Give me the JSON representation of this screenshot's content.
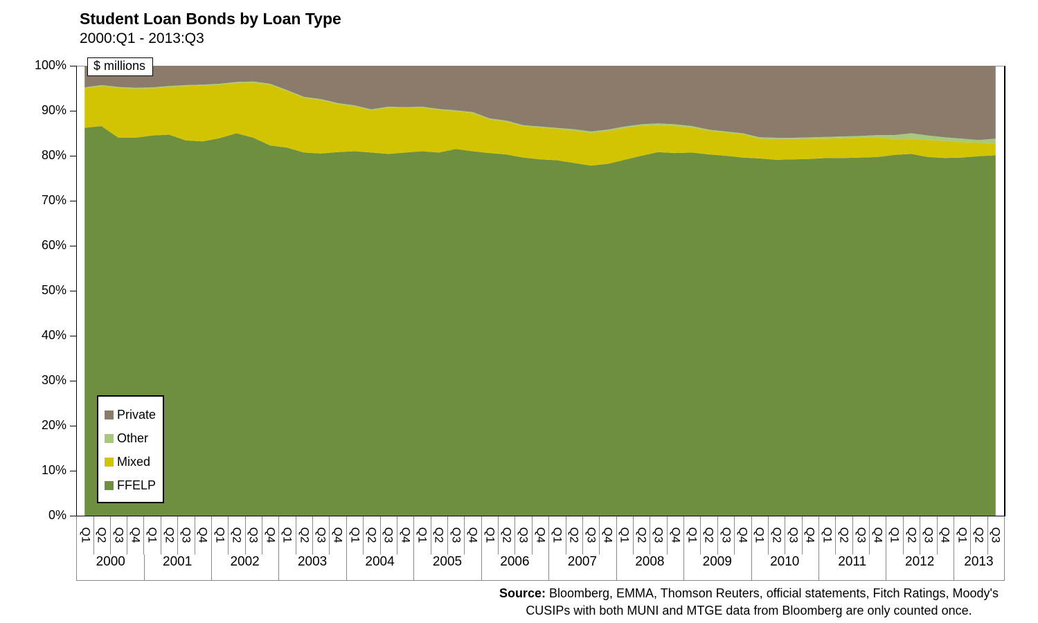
{
  "title": "Student Loan Bonds by Loan Type",
  "subtitle": "2000:Q1 - 2013:Q3",
  "units_note": "$ millions",
  "source": {
    "label": "Source:",
    "line1": " Bloomberg, EMMA, Thomson Reuters, official statements, Fitch Ratings, Moody's",
    "line2": "CUSIPs with both MUNI and MTGE data from Bloomberg are only counted once."
  },
  "legend": [
    {
      "label": "Private",
      "color": "#8b7b6a"
    },
    {
      "label": "Other",
      "color": "#a8c97c"
    },
    {
      "label": "Mixed",
      "color": "#d3c403"
    },
    {
      "label": "FFELP",
      "color": "#6e8f3e"
    }
  ],
  "chart_data": {
    "type": "area",
    "stacked": true,
    "unit": "percent of total",
    "title": "Student Loan Bonds by Loan Type",
    "subtitle": "2000:Q1 - 2013:Q3",
    "ylim": [
      0,
      100
    ],
    "yticks": [
      "0%",
      "10%",
      "20%",
      "30%",
      "40%",
      "50%",
      "60%",
      "70%",
      "80%",
      "90%",
      "100%"
    ],
    "grid": false,
    "legend_position": "middle-left",
    "years": [
      {
        "year": "2000",
        "quarters": [
          "Q1",
          "Q2",
          "Q3",
          "Q4"
        ]
      },
      {
        "year": "2001",
        "quarters": [
          "Q1",
          "Q2",
          "Q3",
          "Q4"
        ]
      },
      {
        "year": "2002",
        "quarters": [
          "Q1",
          "Q2",
          "Q3",
          "Q4"
        ]
      },
      {
        "year": "2003",
        "quarters": [
          "Q1",
          "Q2",
          "Q3",
          "Q4"
        ]
      },
      {
        "year": "2004",
        "quarters": [
          "Q1",
          "Q2",
          "Q3",
          "Q4"
        ]
      },
      {
        "year": "2005",
        "quarters": [
          "Q1",
          "Q2",
          "Q3",
          "Q4"
        ]
      },
      {
        "year": "2006",
        "quarters": [
          "Q1",
          "Q2",
          "Q3",
          "Q4"
        ]
      },
      {
        "year": "2007",
        "quarters": [
          "Q1",
          "Q2",
          "Q3",
          "Q4"
        ]
      },
      {
        "year": "2008",
        "quarters": [
          "Q1",
          "Q2",
          "Q3",
          "Q4"
        ]
      },
      {
        "year": "2009",
        "quarters": [
          "Q1",
          "Q2",
          "Q3",
          "Q4"
        ]
      },
      {
        "year": "2010",
        "quarters": [
          "Q1",
          "Q2",
          "Q3",
          "Q4"
        ]
      },
      {
        "year": "2011",
        "quarters": [
          "Q1",
          "Q2",
          "Q3",
          "Q4"
        ]
      },
      {
        "year": "2012",
        "quarters": [
          "Q1",
          "Q2",
          "Q3",
          "Q4"
        ]
      },
      {
        "year": "2013",
        "quarters": [
          "Q1",
          "Q2",
          "Q3"
        ]
      }
    ],
    "series": [
      {
        "name": "FFELP",
        "color": "#6e8f3e",
        "values": [
          86.2,
          86.6,
          84.0,
          84.0,
          84.5,
          84.7,
          83.4,
          83.2,
          83.9,
          85.0,
          84.0,
          82.3,
          81.8,
          80.7,
          80.5,
          80.8,
          81.0,
          80.7,
          80.4,
          80.7,
          81.0,
          80.7,
          81.5,
          81.0,
          80.6,
          80.3,
          79.6,
          79.2,
          79.0,
          78.4,
          77.8,
          78.2,
          79.1,
          80.0,
          80.8,
          80.6,
          80.7,
          80.3,
          80.0,
          79.6,
          79.4,
          79.1,
          79.2,
          79.3,
          79.5,
          79.5,
          79.6,
          79.7,
          80.2,
          80.4,
          79.7,
          79.5,
          79.6,
          79.9,
          80.1
        ]
      },
      {
        "name": "Mixed",
        "color": "#d3c403",
        "values": [
          8.8,
          8.9,
          11.1,
          10.9,
          10.5,
          10.6,
          12.1,
          12.4,
          11.9,
          11.2,
          12.3,
          13.5,
          12.6,
          12.2,
          11.9,
          10.7,
          10.0,
          9.4,
          10.3,
          9.9,
          9.7,
          9.5,
          8.4,
          8.5,
          7.5,
          7.3,
          7.0,
          7.1,
          7.0,
          7.2,
          7.3,
          7.3,
          7.1,
          6.7,
          6.0,
          6.0,
          5.6,
          5.3,
          5.2,
          5.2,
          4.4,
          4.6,
          4.5,
          4.5,
          4.3,
          4.4,
          4.4,
          4.4,
          3.5,
          3.4,
          3.8,
          3.8,
          3.4,
          3.0,
          2.5
        ]
      },
      {
        "name": "Other",
        "color": "#a8c97c",
        "values": [
          0.2,
          0.2,
          0.2,
          0.2,
          0.2,
          0.2,
          0.2,
          0.2,
          0.2,
          0.2,
          0.2,
          0.2,
          0.2,
          0.2,
          0.2,
          0.2,
          0.2,
          0.2,
          0.2,
          0.2,
          0.2,
          0.2,
          0.2,
          0.2,
          0.2,
          0.2,
          0.2,
          0.2,
          0.2,
          0.3,
          0.3,
          0.3,
          0.3,
          0.3,
          0.4,
          0.4,
          0.3,
          0.2,
          0.2,
          0.2,
          0.3,
          0.3,
          0.3,
          0.3,
          0.4,
          0.4,
          0.4,
          0.5,
          0.9,
          1.2,
          1.0,
          0.8,
          0.8,
          0.6,
          1.2
        ]
      },
      {
        "name": "Private",
        "color": "#8b7b6a",
        "values": [
          4.8,
          4.3,
          4.7,
          4.9,
          4.8,
          4.5,
          4.3,
          4.2,
          4.0,
          3.6,
          3.5,
          4.0,
          5.4,
          6.9,
          7.4,
          8.3,
          8.8,
          9.7,
          9.1,
          9.2,
          9.1,
          9.6,
          9.9,
          10.3,
          11.7,
          12.1,
          13.2,
          13.5,
          13.8,
          14.1,
          14.6,
          14.2,
          13.5,
          13.0,
          12.8,
          13.0,
          13.4,
          14.2,
          14.6,
          15.0,
          15.9,
          16.0,
          16.0,
          15.9,
          15.8,
          15.7,
          15.6,
          15.4,
          15.4,
          15.0,
          15.5,
          15.9,
          16.2,
          16.5,
          16.2
        ]
      }
    ]
  }
}
